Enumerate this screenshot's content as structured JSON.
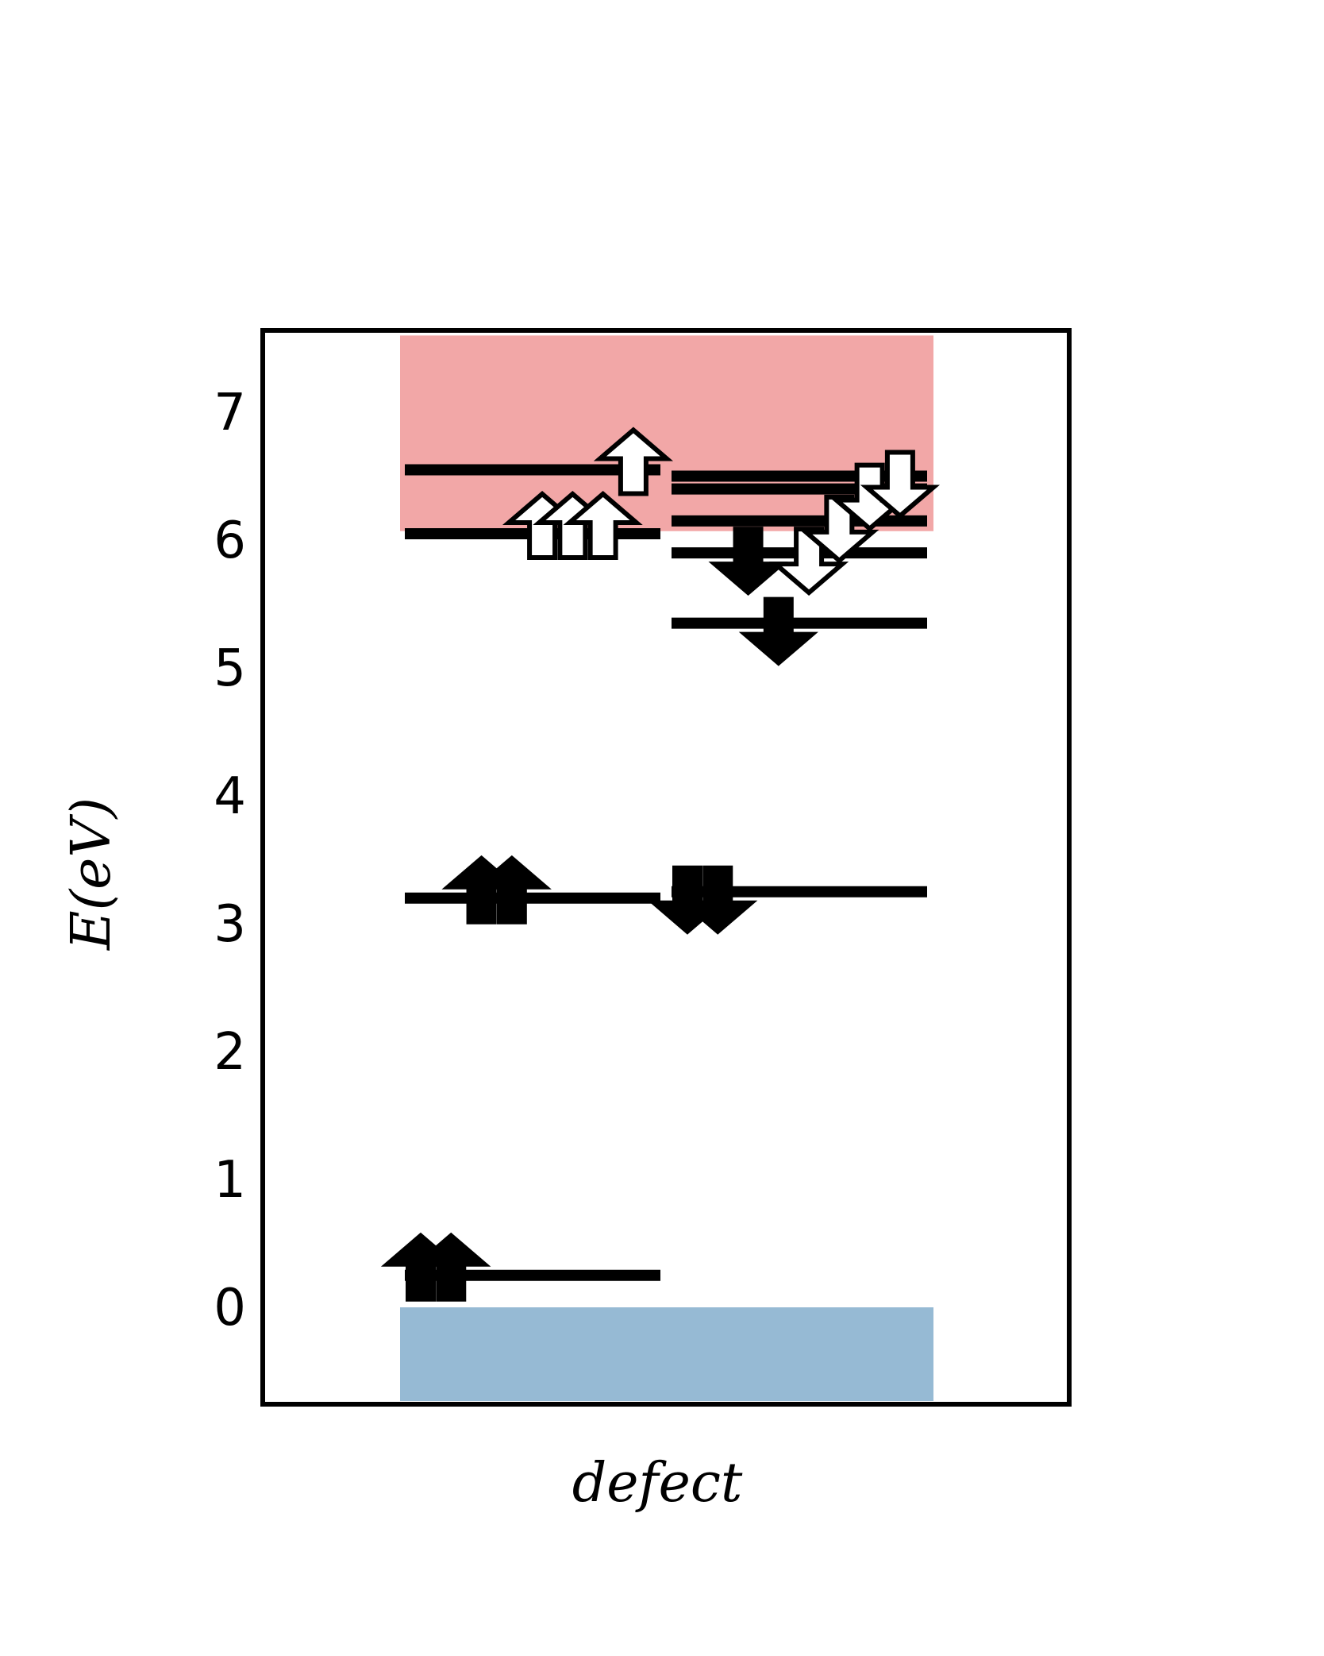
{
  "chart_data": {
    "type": "energy-level-diagram",
    "title": "",
    "xlabel": "defect",
    "ylabel": "E(eV)",
    "ylim": [
      -0.75,
      7.6
    ],
    "yticks": [
      0,
      1,
      2,
      3,
      4,
      5,
      6,
      7
    ],
    "grid": false,
    "legend": "none",
    "bands": [
      {
        "name": "valence band",
        "from": -0.75,
        "to": 0.0,
        "color": "#96bad4"
      },
      {
        "name": "conduction band",
        "from": 6.07,
        "to": 7.6,
        "color": "#f2a7a7"
      }
    ],
    "columns": [
      {
        "spin": "up",
        "levels": [
          {
            "energy": 0.25,
            "occupied": true
          },
          {
            "energy": 0.25,
            "occupied": true
          },
          {
            "energy": 3.2,
            "occupied": true
          },
          {
            "energy": 3.2,
            "occupied": true
          },
          {
            "energy": 6.05,
            "occupied": false
          },
          {
            "energy": 6.05,
            "occupied": false
          },
          {
            "energy": 6.05,
            "occupied": false
          },
          {
            "energy": 6.55,
            "occupied": false
          }
        ]
      },
      {
        "spin": "down",
        "levels": [
          {
            "energy": 3.25,
            "occupied": true
          },
          {
            "energy": 3.25,
            "occupied": true
          },
          {
            "energy": 5.9,
            "occupied": true
          },
          {
            "energy": 5.35,
            "occupied": true
          },
          {
            "energy": 5.9,
            "occupied": false
          },
          {
            "energy": 6.15,
            "occupied": false
          },
          {
            "energy": 6.4,
            "occupied": false
          },
          {
            "energy": 6.5,
            "occupied": false
          }
        ]
      }
    ]
  }
}
